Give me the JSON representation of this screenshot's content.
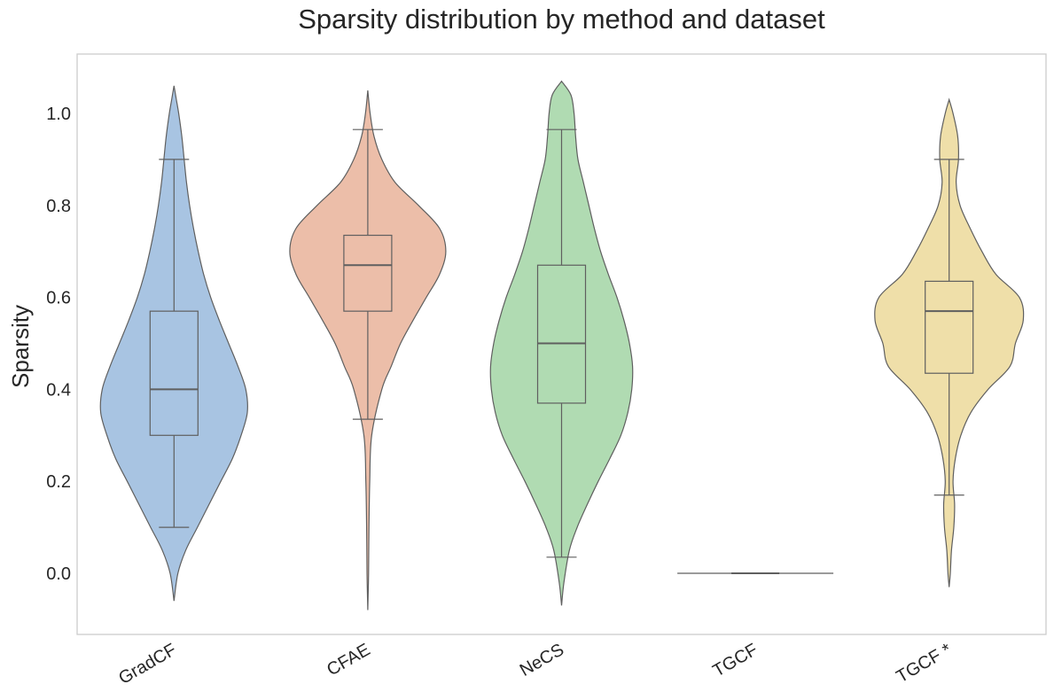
{
  "chart_data": {
    "type": "violin",
    "title": "Sparsity distribution by method and dataset",
    "xlabel": "",
    "ylabel": "Sparsity",
    "ylim": [
      -0.13,
      1.13
    ],
    "yticks": [
      0.0,
      0.2,
      0.4,
      0.6,
      0.8,
      1.0
    ],
    "ytick_labels": [
      "0.0",
      "0.2",
      "0.4",
      "0.6",
      "0.8",
      "1.0"
    ],
    "grid": false,
    "categories": [
      "GradCF",
      "CFAE",
      "NeCS",
      "TGCF",
      "TGCF *"
    ],
    "series": [
      {
        "category": "GradCF",
        "color": "#a8c4e2",
        "box": {
          "whisker_low": 0.1,
          "q1": 0.3,
          "median": 0.4,
          "q3": 0.57,
          "whisker_high": 0.9
        },
        "density": [
          [
            -0.06,
            0.0
          ],
          [
            0.0,
            0.05
          ],
          [
            0.05,
            0.15
          ],
          [
            0.1,
            0.3
          ],
          [
            0.15,
            0.45
          ],
          [
            0.2,
            0.6
          ],
          [
            0.25,
            0.75
          ],
          [
            0.3,
            0.86
          ],
          [
            0.35,
            0.94
          ],
          [
            0.4,
            0.92
          ],
          [
            0.45,
            0.82
          ],
          [
            0.5,
            0.7
          ],
          [
            0.55,
            0.58
          ],
          [
            0.6,
            0.47
          ],
          [
            0.65,
            0.38
          ],
          [
            0.7,
            0.31
          ],
          [
            0.75,
            0.25
          ],
          [
            0.8,
            0.2
          ],
          [
            0.85,
            0.16
          ],
          [
            0.9,
            0.13
          ],
          [
            0.95,
            0.1
          ],
          [
            1.0,
            0.06
          ],
          [
            1.03,
            0.03
          ],
          [
            1.06,
            0.0
          ]
        ]
      },
      {
        "category": "CFAE",
        "color": "#ecbea9",
        "box": {
          "whisker_low": 0.335,
          "q1": 0.57,
          "median": 0.67,
          "q3": 0.735,
          "whisker_high": 0.965
        },
        "density": [
          [
            -0.08,
            0.0
          ],
          [
            0.0,
            0.01
          ],
          [
            0.1,
            0.015
          ],
          [
            0.2,
            0.025
          ],
          [
            0.3,
            0.05
          ],
          [
            0.4,
            0.18
          ],
          [
            0.45,
            0.3
          ],
          [
            0.5,
            0.42
          ],
          [
            0.55,
            0.58
          ],
          [
            0.6,
            0.75
          ],
          [
            0.65,
            0.92
          ],
          [
            0.7,
            1.0
          ],
          [
            0.75,
            0.92
          ],
          [
            0.8,
            0.65
          ],
          [
            0.85,
            0.35
          ],
          [
            0.9,
            0.18
          ],
          [
            0.95,
            0.08
          ],
          [
            1.0,
            0.03
          ],
          [
            1.05,
            0.0
          ]
        ]
      },
      {
        "category": "NeCS",
        "color": "#b0dbb2",
        "box": {
          "whisker_low": 0.035,
          "q1": 0.37,
          "median": 0.5,
          "q3": 0.67,
          "whisker_high": 0.965
        },
        "density": [
          [
            -0.07,
            0.0
          ],
          [
            -0.02,
            0.03
          ],
          [
            0.05,
            0.1
          ],
          [
            0.1,
            0.2
          ],
          [
            0.15,
            0.33
          ],
          [
            0.2,
            0.47
          ],
          [
            0.25,
            0.62
          ],
          [
            0.3,
            0.76
          ],
          [
            0.35,
            0.85
          ],
          [
            0.4,
            0.9
          ],
          [
            0.45,
            0.91
          ],
          [
            0.5,
            0.87
          ],
          [
            0.55,
            0.8
          ],
          [
            0.6,
            0.71
          ],
          [
            0.65,
            0.6
          ],
          [
            0.7,
            0.5
          ],
          [
            0.75,
            0.42
          ],
          [
            0.8,
            0.35
          ],
          [
            0.85,
            0.28
          ],
          [
            0.9,
            0.21
          ],
          [
            0.95,
            0.18
          ],
          [
            1.0,
            0.16
          ],
          [
            1.04,
            0.12
          ],
          [
            1.07,
            0.0
          ]
        ]
      },
      {
        "category": "TGCF",
        "color": "#f2c2d8",
        "box": {
          "whisker_low": 0.0,
          "q1": 0.0,
          "median": 0.0,
          "q3": 0.0,
          "whisker_high": 0.0
        },
        "density": [
          [
            -0.003,
            0.0
          ],
          [
            0.0,
            1.0
          ],
          [
            0.003,
            0.0
          ]
        ]
      },
      {
        "category": "TGCF *",
        "color": "#efdfa9",
        "box": {
          "whisker_low": 0.17,
          "q1": 0.435,
          "median": 0.57,
          "q3": 0.635,
          "whisker_high": 0.9
        },
        "density": [
          [
            -0.03,
            0.0
          ],
          [
            0.0,
            0.015
          ],
          [
            0.05,
            0.03
          ],
          [
            0.1,
            0.06
          ],
          [
            0.15,
            0.07
          ],
          [
            0.2,
            0.05
          ],
          [
            0.25,
            0.08
          ],
          [
            0.3,
            0.15
          ],
          [
            0.35,
            0.28
          ],
          [
            0.4,
            0.5
          ],
          [
            0.45,
            0.78
          ],
          [
            0.5,
            0.85
          ],
          [
            0.55,
            0.95
          ],
          [
            0.6,
            0.9
          ],
          [
            0.65,
            0.6
          ],
          [
            0.7,
            0.42
          ],
          [
            0.75,
            0.27
          ],
          [
            0.8,
            0.14
          ],
          [
            0.85,
            0.09
          ],
          [
            0.9,
            0.12
          ],
          [
            0.95,
            0.11
          ],
          [
            1.0,
            0.05
          ],
          [
            1.03,
            0.0
          ]
        ]
      }
    ],
    "colors": {
      "outline": "#5f5f5f",
      "frame": "#cccccc",
      "text": "#262626"
    }
  }
}
